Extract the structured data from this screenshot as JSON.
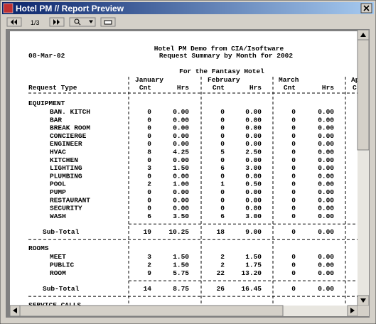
{
  "window": {
    "title": "Hotel PM // Report Preview"
  },
  "toolbar": {
    "page": "1/3"
  },
  "report": {
    "title": "Hotel PM Demo from CIA/Isoftware",
    "date": "08-Mar-02",
    "subtitle": "Request Summary by Month for 2002",
    "hotel": "For the Fantasy Hotel",
    "months": [
      "January",
      "February",
      "March",
      "Ap"
    ],
    "columns": {
      "type": "Request Type",
      "cnt": "Cnt",
      "hrs": "Hrs",
      "partial": "C"
    },
    "sections": [
      {
        "name": "EQUIPMENT",
        "rows": [
          [
            "BAN. KITCH",
            "0",
            "0.00",
            "0",
            "0.00",
            "0",
            "0.00"
          ],
          [
            "BAR",
            "0",
            "0.00",
            "0",
            "0.00",
            "0",
            "0.00"
          ],
          [
            "BREAK ROOM",
            "0",
            "0.00",
            "0",
            "0.00",
            "0",
            "0.00"
          ],
          [
            "CONCIERGE",
            "0",
            "0.00",
            "0",
            "0.00",
            "0",
            "0.00"
          ],
          [
            "ENGINEER",
            "0",
            "0.00",
            "0",
            "0.00",
            "0",
            "0.00"
          ],
          [
            "HVAC",
            "8",
            "4.25",
            "5",
            "2.50",
            "0",
            "0.00"
          ],
          [
            "KITCHEN",
            "0",
            "0.00",
            "0",
            "0.00",
            "0",
            "0.00"
          ],
          [
            "LIGHTING",
            "3",
            "1.50",
            "6",
            "3.00",
            "0",
            "0.00"
          ],
          [
            "PLUMBING",
            "0",
            "0.00",
            "0",
            "0.00",
            "0",
            "0.00"
          ],
          [
            "POOL",
            "2",
            "1.00",
            "1",
            "0.50",
            "0",
            "0.00"
          ],
          [
            "PUMP",
            "0",
            "0.00",
            "0",
            "0.00",
            "0",
            "0.00"
          ],
          [
            "RESTAURANT",
            "0",
            "0.00",
            "0",
            "0.00",
            "0",
            "0.00"
          ],
          [
            "SECURITY",
            "0",
            "0.00",
            "0",
            "0.00",
            "0",
            "0.00"
          ],
          [
            "WASH",
            "6",
            "3.50",
            "6",
            "3.00",
            "0",
            "0.00"
          ]
        ],
        "subtotal": [
          "Sub-Total",
          "19",
          "10.25",
          "18",
          "9.00",
          "0",
          "0.00"
        ]
      },
      {
        "name": "ROOMS",
        "rows": [
          [
            "MEET",
            "3",
            "1.50",
            "2",
            "1.50",
            "0",
            "0.00"
          ],
          [
            "PUBLIC",
            "2",
            "1.50",
            "2",
            "1.75",
            "0",
            "0.00"
          ],
          [
            "ROOM",
            "9",
            "5.75",
            "22",
            "13.20",
            "0",
            "0.00"
          ]
        ],
        "subtotal": [
          "Sub-Total",
          "14",
          "8.75",
          "26",
          "16.45",
          "0",
          "0.00"
        ]
      },
      {
        "name": "SERVICE CALLS"
      }
    ]
  }
}
